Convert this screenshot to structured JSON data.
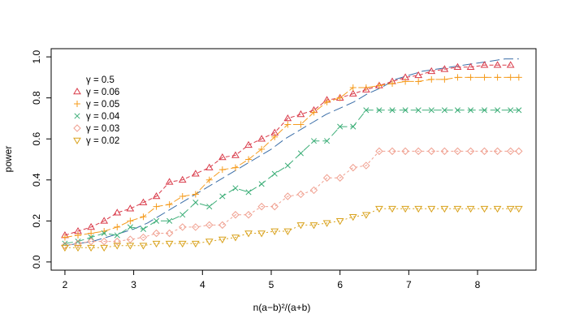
{
  "chart_data": {
    "type": "line",
    "title": "",
    "xlabel": "n(a−b)²/(a+b)",
    "ylabel": "power",
    "xlim": [
      1.8,
      8.85
    ],
    "ylim": [
      -0.04,
      1.04
    ],
    "x_ticks": [
      2,
      3,
      4,
      5,
      6,
      7,
      8
    ],
    "y_ticks": [
      0.0,
      0.2,
      0.4,
      0.6,
      0.8,
      1.0
    ],
    "x_tick_labels": [
      "2",
      "3",
      "4",
      "5",
      "6",
      "7",
      "8"
    ],
    "y_tick_labels": [
      "0.0",
      "0.2",
      "0.4",
      "0.6",
      "0.8",
      "1.0"
    ],
    "grid": false,
    "legend_position": "top-left",
    "x": [
      2.0,
      2.19,
      2.38,
      2.57,
      2.76,
      2.95,
      3.14,
      3.33,
      3.52,
      3.71,
      3.9,
      4.1,
      4.29,
      4.48,
      4.67,
      4.86,
      5.05,
      5.24,
      5.43,
      5.62,
      5.81,
      6.0,
      6.19,
      6.38,
      6.57,
      6.76,
      6.95,
      7.14,
      7.33,
      7.52,
      7.71,
      7.9,
      8.1,
      8.29,
      8.48,
      8.6
    ],
    "series": [
      {
        "name": "γ = 0.5",
        "marker": "none",
        "color": "#3B6EA8",
        "x": [
          2.0,
          2.2,
          2.4,
          2.6,
          2.8,
          3.0,
          3.2,
          3.4,
          3.6,
          3.8,
          4.0,
          4.2,
          4.4,
          4.6,
          4.8,
          5.0,
          5.2,
          5.4,
          5.6,
          5.8,
          6.0,
          6.2,
          6.4,
          6.6,
          6.8,
          7.0,
          7.2,
          7.4,
          7.6,
          7.8,
          8.0,
          8.2,
          8.4,
          8.6
        ],
        "values": [
          0.08,
          0.09,
          0.1,
          0.12,
          0.14,
          0.16,
          0.19,
          0.23,
          0.27,
          0.31,
          0.35,
          0.39,
          0.43,
          0.47,
          0.51,
          0.55,
          0.6,
          0.64,
          0.68,
          0.72,
          0.75,
          0.78,
          0.82,
          0.85,
          0.89,
          0.91,
          0.93,
          0.94,
          0.95,
          0.96,
          0.97,
          0.98,
          0.99,
          0.99
        ]
      },
      {
        "name": "γ = 0.06",
        "marker": "triangle-up",
        "color": "#D93A49",
        "x": [
          2.0,
          2.19,
          2.38,
          2.57,
          2.76,
          2.95,
          3.14,
          3.33,
          3.52,
          3.71,
          3.9,
          4.1,
          4.29,
          4.48,
          4.67,
          4.86,
          5.05,
          5.24,
          5.43,
          5.62,
          5.81,
          6.0,
          6.19,
          6.38,
          6.57,
          6.76,
          6.95,
          7.14,
          7.33,
          7.52,
          7.71,
          7.9,
          8.1,
          8.29,
          8.48
        ],
        "values": [
          0.13,
          0.15,
          0.17,
          0.2,
          0.24,
          0.26,
          0.29,
          0.32,
          0.39,
          0.4,
          0.43,
          0.46,
          0.51,
          0.52,
          0.57,
          0.6,
          0.63,
          0.7,
          0.72,
          0.74,
          0.79,
          0.8,
          0.82,
          0.84,
          0.86,
          0.88,
          0.9,
          0.91,
          0.93,
          0.94,
          0.95,
          0.95,
          0.96,
          0.96,
          0.96
        ]
      },
      {
        "name": "γ = 0.05",
        "marker": "plus",
        "color": "#F59C1E",
        "x": [
          2.0,
          2.19,
          2.38,
          2.57,
          2.76,
          2.95,
          3.14,
          3.33,
          3.52,
          3.71,
          3.9,
          4.1,
          4.29,
          4.48,
          4.67,
          4.86,
          5.05,
          5.24,
          5.43,
          5.62,
          5.81,
          6.0,
          6.19,
          6.38,
          6.57,
          6.76,
          6.95,
          7.14,
          7.33,
          7.52,
          7.71,
          7.9,
          8.1,
          8.29,
          8.48,
          8.6
        ],
        "values": [
          0.12,
          0.13,
          0.14,
          0.15,
          0.17,
          0.2,
          0.22,
          0.27,
          0.28,
          0.32,
          0.33,
          0.4,
          0.45,
          0.46,
          0.5,
          0.55,
          0.61,
          0.67,
          0.67,
          0.73,
          0.78,
          0.8,
          0.85,
          0.85,
          0.86,
          0.87,
          0.88,
          0.88,
          0.89,
          0.89,
          0.9,
          0.9,
          0.9,
          0.9,
          0.9,
          0.9
        ]
      },
      {
        "name": "γ = 0.04",
        "marker": "x",
        "color": "#3DAE78",
        "x": [
          2.0,
          2.19,
          2.38,
          2.57,
          2.76,
          2.95,
          3.14,
          3.33,
          3.52,
          3.71,
          3.9,
          4.1,
          4.29,
          4.48,
          4.67,
          4.86,
          5.05,
          5.24,
          5.43,
          5.62,
          5.81,
          6.0,
          6.19,
          6.38,
          6.57,
          6.76,
          6.95,
          7.14,
          7.33,
          7.52,
          7.71,
          7.9,
          8.1,
          8.29,
          8.48,
          8.6
        ],
        "values": [
          0.09,
          0.1,
          0.12,
          0.14,
          0.13,
          0.17,
          0.16,
          0.2,
          0.2,
          0.23,
          0.29,
          0.27,
          0.32,
          0.36,
          0.34,
          0.38,
          0.43,
          0.47,
          0.53,
          0.59,
          0.59,
          0.66,
          0.66,
          0.74,
          0.74,
          0.74,
          0.74,
          0.74,
          0.74,
          0.74,
          0.74,
          0.74,
          0.74,
          0.74,
          0.74,
          0.74
        ]
      },
      {
        "name": "γ = 0.03",
        "marker": "diamond",
        "color": "#F0A090",
        "x": [
          2.0,
          2.19,
          2.38,
          2.57,
          2.76,
          2.95,
          3.14,
          3.33,
          3.52,
          3.71,
          3.9,
          4.1,
          4.29,
          4.48,
          4.67,
          4.86,
          5.05,
          5.24,
          5.43,
          5.62,
          5.81,
          6.0,
          6.19,
          6.38,
          6.57,
          6.76,
          6.95,
          7.14,
          7.33,
          7.52,
          7.71,
          7.9,
          8.1,
          8.29,
          8.48,
          8.6
        ],
        "values": [
          0.08,
          0.09,
          0.1,
          0.1,
          0.1,
          0.11,
          0.12,
          0.14,
          0.14,
          0.17,
          0.17,
          0.18,
          0.18,
          0.23,
          0.23,
          0.27,
          0.27,
          0.32,
          0.33,
          0.35,
          0.41,
          0.41,
          0.46,
          0.47,
          0.54,
          0.54,
          0.54,
          0.54,
          0.54,
          0.54,
          0.54,
          0.54,
          0.54,
          0.54,
          0.54,
          0.54
        ]
      },
      {
        "name": "γ = 0.02",
        "marker": "triangle-down",
        "color": "#D9A21C",
        "x": [
          2.0,
          2.19,
          2.38,
          2.57,
          2.76,
          2.95,
          3.14,
          3.33,
          3.52,
          3.71,
          3.9,
          4.1,
          4.29,
          4.48,
          4.67,
          4.86,
          5.05,
          5.24,
          5.43,
          5.62,
          5.81,
          6.0,
          6.19,
          6.38,
          6.57,
          6.76,
          6.95,
          7.14,
          7.33,
          7.52,
          7.71,
          7.9,
          8.1,
          8.29,
          8.48,
          8.6
        ],
        "values": [
          0.07,
          0.07,
          0.07,
          0.07,
          0.08,
          0.08,
          0.08,
          0.09,
          0.09,
          0.09,
          0.09,
          0.1,
          0.11,
          0.12,
          0.14,
          0.14,
          0.15,
          0.15,
          0.18,
          0.18,
          0.19,
          0.2,
          0.22,
          0.23,
          0.26,
          0.26,
          0.26,
          0.26,
          0.26,
          0.26,
          0.26,
          0.26,
          0.26,
          0.26,
          0.26,
          0.26
        ]
      }
    ]
  }
}
